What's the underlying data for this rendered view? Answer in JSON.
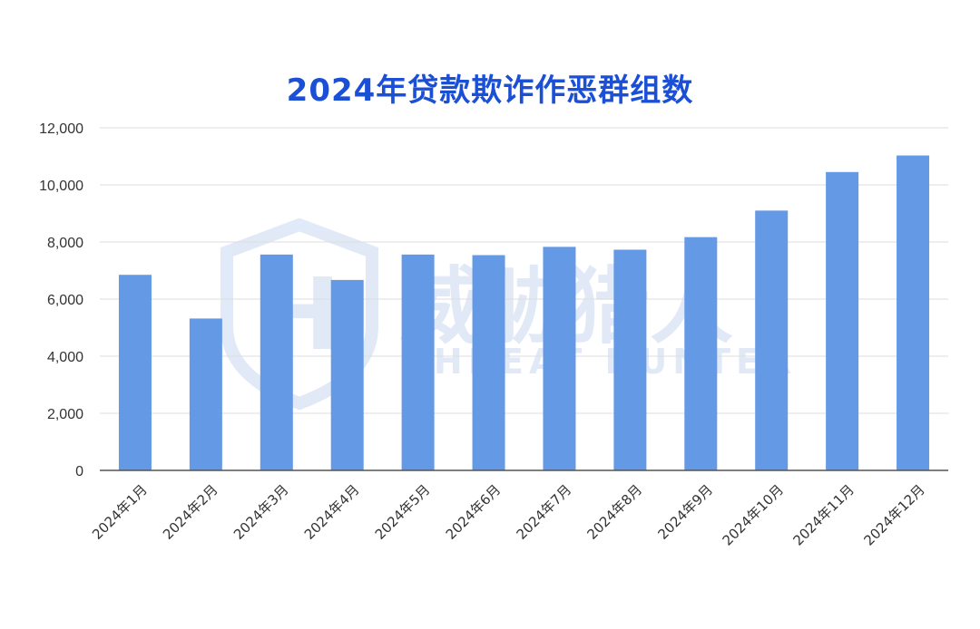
{
  "chart_data": {
    "type": "bar",
    "title": "2024年贷款欺诈作恶群组数",
    "categories": [
      "2024年1月",
      "2024年2月",
      "2024年3月",
      "2024年4月",
      "2024年5月",
      "2024年6月",
      "2024年7月",
      "2024年8月",
      "2024年9月",
      "2024年10月",
      "2024年11月",
      "2024年12月"
    ],
    "values": [
      6850,
      5320,
      7560,
      6670,
      7560,
      7540,
      7830,
      7730,
      8170,
      9100,
      10450,
      11030
    ],
    "yticks": [
      "0",
      "2,000",
      "4,000",
      "6,000",
      "8,000",
      "10,000",
      "12,000"
    ],
    "ylim": [
      0,
      12000
    ],
    "xlabel": "",
    "ylabel": "",
    "grid": true,
    "bar_color": "#6499e6"
  },
  "watermark": {
    "cn": "威胁猎人",
    "en": "THREAT HUNTER",
    "color": "#c9d8f2"
  }
}
